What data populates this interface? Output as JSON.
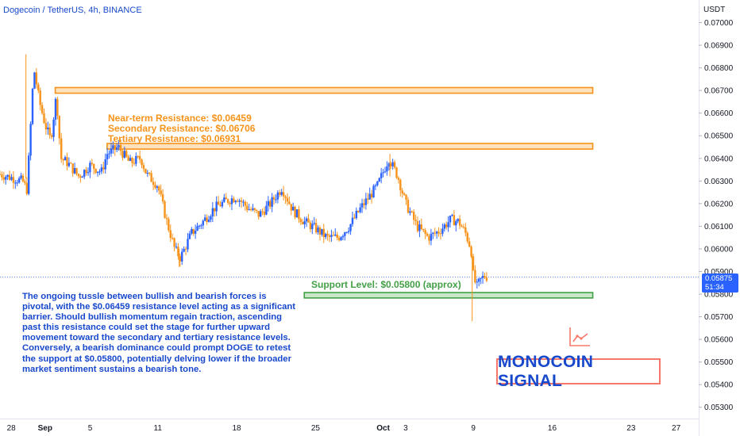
{
  "header": {
    "title": "Dogecoin / TetherUS, 4h, BINANCE",
    "unit": "USDT"
  },
  "price_tag": {
    "price": "0.05875",
    "countdown": "51:34"
  },
  "annotations": {
    "resistance_near": "Near-term Resistance: $0.06459",
    "resistance_secondary": "Secondary Resistance: $0.06706",
    "resistance_tertiary": "Tertiary Resistance: $0.06931",
    "support": "Support Level: $0.05800 (approx)",
    "commentary": "The ongoing tussle between bullish and bearish forces is pivotal, with the $0.06459 resistance level acting as a significant barrier. Should bullish momentum regain traction, ascending past this resistance could set the stage for further upward movement toward the secondary and tertiary resistance levels. Conversely, a bearish dominance could prompt DOGE to retest the support at $0.05800, potentially delving lower if the broader market sentiment sustains a bearish tone."
  },
  "branding": {
    "name": "MONOCOIN SIGNAL",
    "icon": "chart-line-icon"
  },
  "colors": {
    "up": "#2962ff",
    "down": "#f7931a",
    "resistance": "#f7931a",
    "support": "#43a047",
    "text_blue": "#1848cc",
    "brand_border": "#f7786b"
  },
  "chart_data": {
    "type": "candlestick",
    "timeframe": "4h",
    "ylim": [
      0.0525,
      0.071
    ],
    "xlim": [
      -1,
      61
    ],
    "x_tick_labels": [
      {
        "label": "28",
        "day": 0
      },
      {
        "label": "Sep",
        "day": 3
      },
      {
        "label": "5",
        "day": 7
      },
      {
        "label": "11",
        "day": 13
      },
      {
        "label": "18",
        "day": 20
      },
      {
        "label": "25",
        "day": 27
      },
      {
        "label": "Oct",
        "day": 33
      },
      {
        "label": "3",
        "day": 35
      },
      {
        "label": "9",
        "day": 41
      },
      {
        "label": "16",
        "day": 48
      },
      {
        "label": "23",
        "day": 55
      },
      {
        "label": "27",
        "day": 59
      }
    ],
    "y_tick_labels": [
      "0.05300",
      "0.05400",
      "0.05500",
      "0.05600",
      "0.05700",
      "0.05800",
      "0.05900",
      "0.06000",
      "0.06100",
      "0.06200",
      "0.06300",
      "0.06400",
      "0.06500",
      "0.06600",
      "0.06700",
      "0.06800",
      "0.06900",
      "0.07000"
    ],
    "current_price": 0.05875,
    "zones": [
      {
        "name": "resistance-zone-top",
        "start_day": 3.9,
        "end_day": 51.6,
        "low": 0.06695,
        "high": 0.06706
      },
      {
        "name": "resistance-zone-mid",
        "start_day": 8.5,
        "end_day": 51.6,
        "low": 0.06448,
        "high": 0.06459
      },
      {
        "name": "support-zone",
        "start_day": 26.0,
        "end_day": 51.6,
        "low": 0.0579,
        "high": 0.058
      }
    ],
    "path": [
      [
        -1,
        0.0633
      ],
      [
        1.0,
        0.063
      ],
      [
        1.4,
        0.0626
      ],
      [
        2.0,
        0.068
      ],
      [
        2.5,
        0.0665
      ],
      [
        3.0,
        0.0655
      ],
      [
        3.5,
        0.0648
      ],
      [
        4.0,
        0.0668
      ],
      [
        4.4,
        0.064
      ],
      [
        5.0,
        0.0638
      ],
      [
        6.0,
        0.0632
      ],
      [
        7.0,
        0.0637
      ],
      [
        8.0,
        0.0634
      ],
      [
        8.5,
        0.0642
      ],
      [
        9.5,
        0.0645
      ],
      [
        10.5,
        0.0638
      ],
      [
        11.5,
        0.064
      ],
      [
        12.0,
        0.0633
      ],
      [
        13.0,
        0.0628
      ],
      [
        13.8,
        0.0612
      ],
      [
        14.5,
        0.06
      ],
      [
        15.0,
        0.0596
      ],
      [
        16.0,
        0.0607
      ],
      [
        17.0,
        0.0612
      ],
      [
        18.0,
        0.0618
      ],
      [
        19.0,
        0.0621
      ],
      [
        20.0,
        0.0623
      ],
      [
        21.0,
        0.0618
      ],
      [
        22.0,
        0.0615
      ],
      [
        23.0,
        0.062
      ],
      [
        24.0,
        0.0627
      ],
      [
        25.0,
        0.0617
      ],
      [
        26.0,
        0.0612
      ],
      [
        27.0,
        0.0609
      ],
      [
        28.0,
        0.0605
      ],
      [
        29.0,
        0.0605
      ],
      [
        30.0,
        0.061
      ],
      [
        31.0,
        0.0618
      ],
      [
        32.5,
        0.0628
      ],
      [
        33.5,
        0.064
      ],
      [
        34.3,
        0.0632
      ],
      [
        35.0,
        0.062
      ],
      [
        35.5,
        0.0615
      ],
      [
        36.0,
        0.061
      ],
      [
        37.0,
        0.0605
      ],
      [
        38.0,
        0.0608
      ],
      [
        39.0,
        0.0613
      ],
      [
        39.7,
        0.0612
      ],
      [
        40.3,
        0.0607
      ],
      [
        40.8,
        0.06
      ],
      [
        41.0,
        0.0588
      ],
      [
        41.3,
        0.0583
      ],
      [
        41.6,
        0.0586
      ],
      [
        42.0,
        0.0588
      ],
      [
        42.3,
        0.05875
      ]
    ]
  }
}
